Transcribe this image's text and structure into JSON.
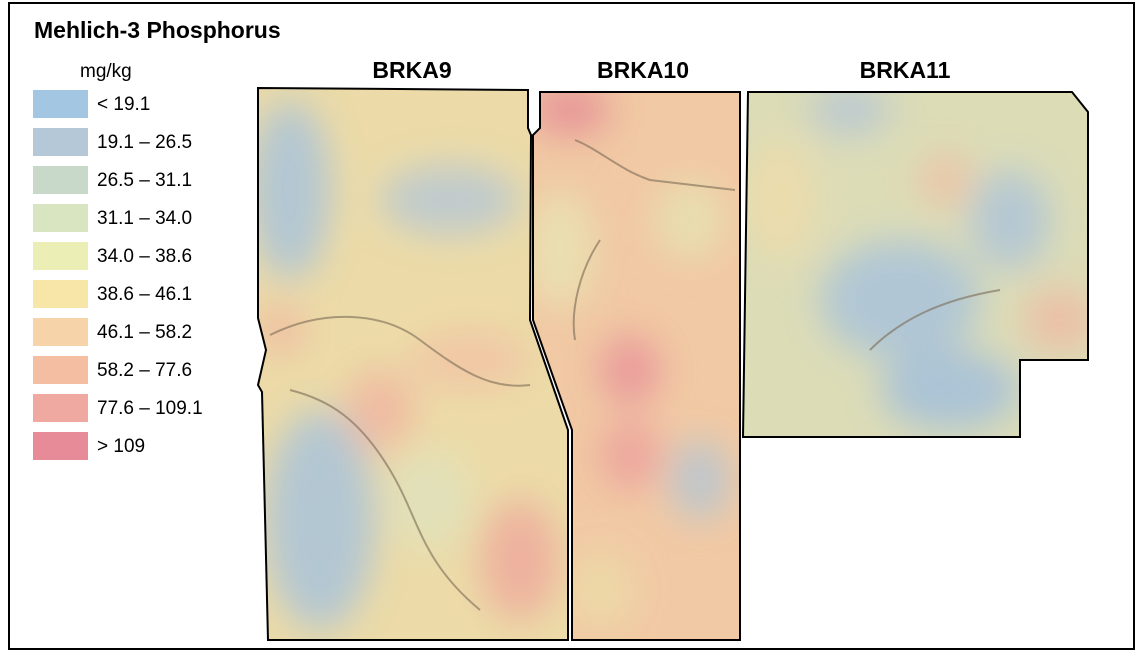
{
  "title": "Mehlich-3 Phosphorus",
  "legend": {
    "unit": "mg/kg",
    "items": [
      {
        "label": "< 19.1",
        "color": "#a3c6e2"
      },
      {
        "label": "19.1 – 26.5",
        "color": "#b5c8d7"
      },
      {
        "label": "26.5 – 31.1",
        "color": "#c9d9c9"
      },
      {
        "label": "31.1 – 34.0",
        "color": "#d9e4c1"
      },
      {
        "label": "34.0 – 38.6",
        "color": "#ecefb5"
      },
      {
        "label": "38.6 – 46.1",
        "color": "#f8e5a8"
      },
      {
        "label": "46.1 – 58.2",
        "color": "#f6d3a8"
      },
      {
        "label": "58.2 – 77.6",
        "color": "#f3bea2"
      },
      {
        "label": "77.6 – 109.1",
        "color": "#efa9a0"
      },
      {
        "label": "> 109",
        "color": "#e78b98"
      }
    ]
  },
  "fields": [
    {
      "label": "BRKA9"
    },
    {
      "label": "BRKA10"
    },
    {
      "label": "BRKA11"
    }
  ]
}
